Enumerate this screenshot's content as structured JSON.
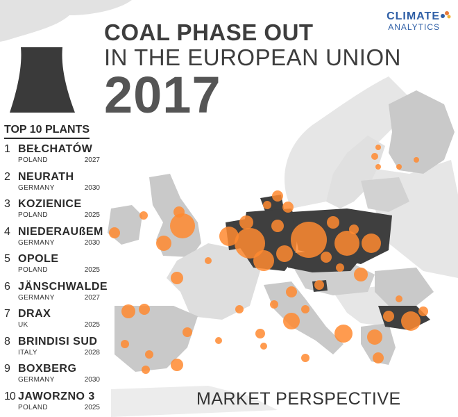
{
  "header": {
    "title_line1": "COAL PHASE OUT",
    "title_line2": "IN THE EUROPEAN UNION",
    "year": "2017"
  },
  "logo": {
    "line1": "CLIMATE",
    "line2": "ANALYTICS"
  },
  "top_plants": {
    "heading": "TOP 10 PLANTS",
    "items": [
      {
        "rank": "1",
        "name": "BEŁCHATÓW",
        "country": "POLAND",
        "year": "2027"
      },
      {
        "rank": "2",
        "name": "NEURATH",
        "country": "GERMANY",
        "year": "2030"
      },
      {
        "rank": "3",
        "name": "KOZIENICE",
        "country": "POLAND",
        "year": "2025"
      },
      {
        "rank": "4",
        "name": "NIEDERAUßEM",
        "country": "GERMANY",
        "year": "2030"
      },
      {
        "rank": "5",
        "name": "OPOLE",
        "country": "POLAND",
        "year": "2025"
      },
      {
        "rank": "6",
        "name": "JÄNSCHWALDE",
        "country": "GERMANY",
        "year": "2027"
      },
      {
        "rank": "7",
        "name": "DRAX",
        "country": "UK",
        "year": "2025"
      },
      {
        "rank": "8",
        "name": "BRINDISI SUD",
        "country": "ITALY",
        "year": "2028"
      },
      {
        "rank": "9",
        "name": "BOXBERG",
        "country": "GERMANY",
        "year": "2030"
      },
      {
        "rank": "10",
        "name": "JAWORZNO 3",
        "country": "POLAND",
        "year": "2025"
      }
    ]
  },
  "footer": {
    "label": "MARKET PERSPECTIVE"
  },
  "colors": {
    "highlight_country": "#3f3f3f",
    "eu_country": "#c9c9c9",
    "non_eu": "#e6e6e6",
    "plant": "#ff8a30"
  }
}
